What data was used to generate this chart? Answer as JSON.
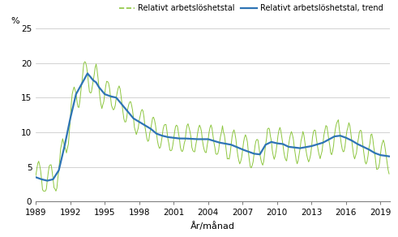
{
  "xlabel": "År/månad",
  "ylabel_label": "%",
  "ylim": [
    0,
    25
  ],
  "yticks": [
    0,
    5,
    10,
    15,
    20,
    25
  ],
  "xticks": [
    1989,
    1992,
    1995,
    1998,
    2001,
    2004,
    2007,
    2010,
    2013,
    2016,
    2019
  ],
  "line_color": "#8dc63f",
  "trend_color": "#2e74b5",
  "legend_labels": [
    "Relativt arbetslöshetstal",
    "Relativt arbetslöshetstal, trend"
  ],
  "figsize": [
    4.91,
    2.92
  ],
  "dpi": 100,
  "knot_t": [
    1989.0,
    1989.5,
    1990.0,
    1990.5,
    1991.0,
    1991.5,
    1992.0,
    1992.5,
    1993.0,
    1993.5,
    1994.0,
    1994.25,
    1994.5,
    1995.0,
    1995.5,
    1996.0,
    1996.5,
    1997.0,
    1997.5,
    1998.0,
    1998.5,
    1999.0,
    1999.5,
    2000.0,
    2000.5,
    2001.0,
    2001.5,
    2002.0,
    2003.0,
    2004.0,
    2005.0,
    2006.0,
    2007.0,
    2007.5,
    2008.0,
    2008.5,
    2009.0,
    2009.5,
    2010.0,
    2010.5,
    2011.0,
    2012.0,
    2013.0,
    2014.0,
    2015.0,
    2015.5,
    2016.0,
    2016.5,
    2017.0,
    2017.5,
    2018.0,
    2018.5,
    2019.0,
    2019.83
  ],
  "knot_v": [
    3.5,
    3.2,
    3.0,
    3.2,
    4.5,
    8.0,
    12.0,
    15.5,
    17.0,
    18.5,
    17.5,
    17.2,
    16.5,
    15.5,
    15.2,
    15.0,
    14.0,
    13.0,
    12.0,
    11.5,
    11.0,
    10.5,
    9.8,
    9.5,
    9.3,
    9.2,
    9.1,
    9.1,
    9.0,
    9.0,
    8.5,
    8.2,
    7.5,
    7.2,
    6.9,
    6.8,
    8.2,
    8.6,
    8.4,
    8.3,
    7.9,
    7.7,
    8.0,
    8.5,
    9.4,
    9.5,
    9.2,
    8.8,
    8.3,
    7.9,
    7.5,
    7.0,
    6.7,
    6.5
  ]
}
